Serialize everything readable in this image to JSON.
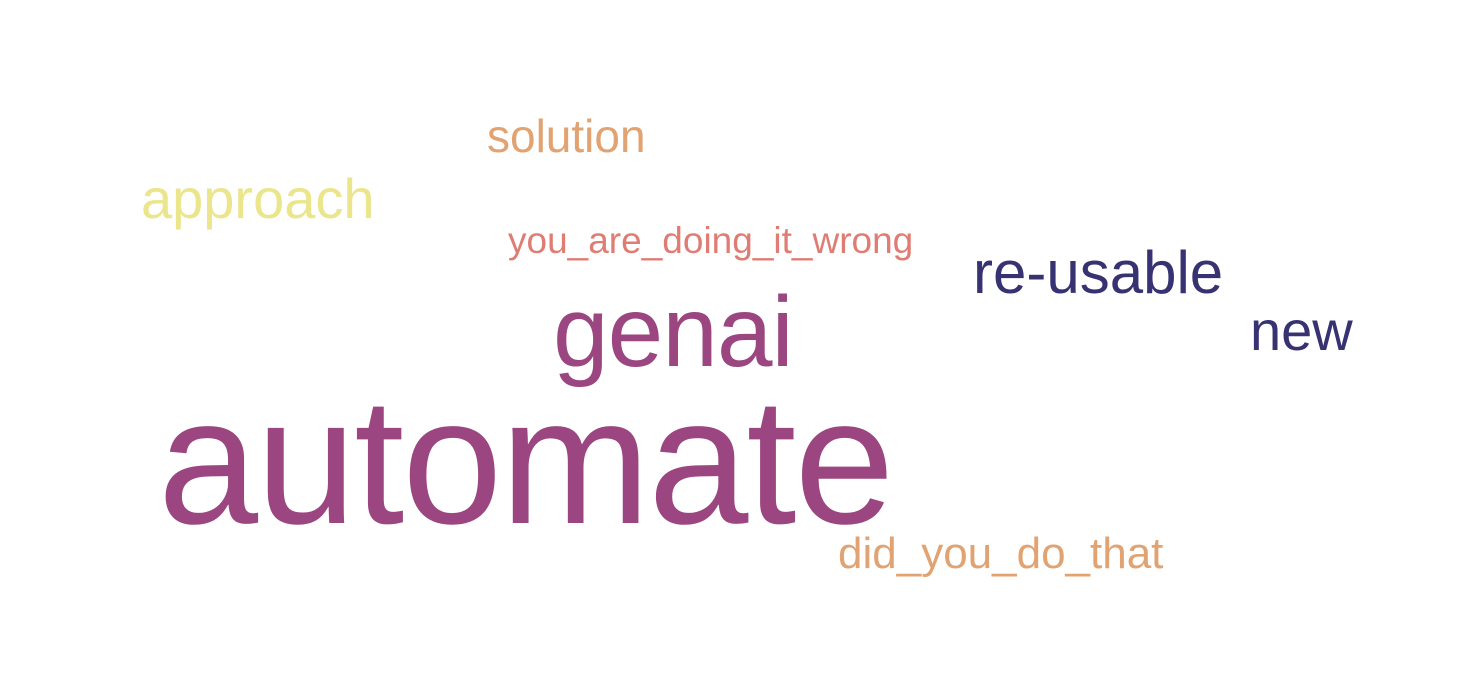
{
  "words": [
    {
      "text": "automate",
      "color": "#9b4680"
    },
    {
      "text": "genai",
      "color": "#9b4680"
    },
    {
      "text": "re-usable",
      "color": "#373271"
    },
    {
      "text": "new",
      "color": "#373271"
    },
    {
      "text": "approach",
      "color": "#ebe68c"
    },
    {
      "text": "solution",
      "color": "#e2a372"
    },
    {
      "text": "you_are_doing_it_wrong",
      "color": "#df7d74"
    },
    {
      "text": "did_you_do_that",
      "color": "#e2a372"
    }
  ]
}
